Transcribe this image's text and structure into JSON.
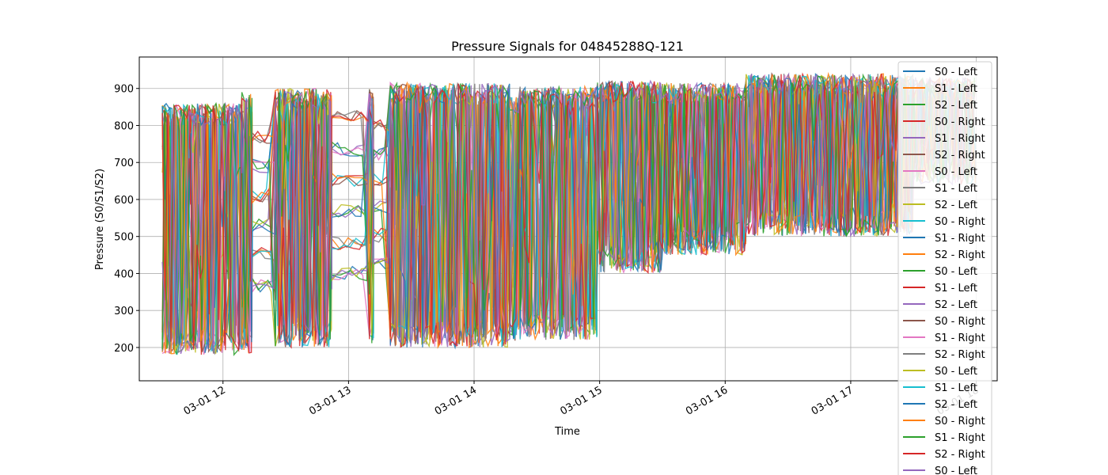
{
  "chart_data": {
    "type": "line",
    "title": "Pressure Signals for 04845288Q-121",
    "xlabel": "Time",
    "ylabel": "Pressure (S0/S1/S2)",
    "grid": true,
    "legend_position": "top-right",
    "x_ticks": [
      "03-01 12",
      "03-01 13",
      "03-01 14",
      "03-01 15",
      "03-01 16",
      "03-01 17",
      "03-01 18"
    ],
    "x_range": [
      "03-01 11:20",
      "03-01 18:10"
    ],
    "y_ticks": [
      200,
      300,
      400,
      500,
      600,
      700,
      800,
      900
    ],
    "ylim": [
      110,
      985
    ],
    "series": [
      {
        "name": "S0 - Left",
        "color": "#1f77b4"
      },
      {
        "name": "S1 - Left",
        "color": "#ff7f0e"
      },
      {
        "name": "S2 - Left",
        "color": "#2ca02c"
      },
      {
        "name": "S0 - Right",
        "color": "#d62728"
      },
      {
        "name": "S1 - Right",
        "color": "#9467bd"
      },
      {
        "name": "S2 - Right",
        "color": "#8c564b"
      },
      {
        "name": "S0 - Left",
        "color": "#e377c2"
      },
      {
        "name": "S1 - Left",
        "color": "#7f7f7f"
      },
      {
        "name": "S2 - Left",
        "color": "#bcbd22"
      },
      {
        "name": "S0 - Right",
        "color": "#17becf"
      },
      {
        "name": "S1 - Right",
        "color": "#1f77b4"
      },
      {
        "name": "S2 - Right",
        "color": "#ff7f0e"
      },
      {
        "name": "S0 - Left",
        "color": "#2ca02c"
      },
      {
        "name": "S1 - Left",
        "color": "#d62728"
      },
      {
        "name": "S2 - Left",
        "color": "#9467bd"
      },
      {
        "name": "S0 - Right",
        "color": "#8c564b"
      },
      {
        "name": "S1 - Right",
        "color": "#e377c2"
      },
      {
        "name": "S2 - Right",
        "color": "#7f7f7f"
      },
      {
        "name": "S0 - Left",
        "color": "#bcbd22"
      },
      {
        "name": "S1 - Left",
        "color": "#17becf"
      },
      {
        "name": "S2 - Left",
        "color": "#1f77b4"
      },
      {
        "name": "S0 - Right",
        "color": "#ff7f0e"
      },
      {
        "name": "S1 - Right",
        "color": "#2ca02c"
      },
      {
        "name": "S2 - Right",
        "color": "#d62728"
      },
      {
        "name": "S0 - Left",
        "color": "#9467bd"
      }
    ],
    "segments": [
      {
        "start": "11:31",
        "end": "12:09",
        "low": 180,
        "high": 860,
        "dense": true
      },
      {
        "start": "12:09",
        "end": "12:14",
        "low": 185,
        "high": 890,
        "dense": true
      },
      {
        "start": "12:14",
        "end": "12:25",
        "low": 370,
        "high": 850,
        "dense": false
      },
      {
        "start": "12:25",
        "end": "12:52",
        "low": 200,
        "high": 900,
        "dense": true
      },
      {
        "start": "12:52",
        "end": "13:10",
        "low": 400,
        "high": 905,
        "dense": false
      },
      {
        "start": "13:10",
        "end": "13:12",
        "low": 210,
        "high": 900,
        "dense": true
      },
      {
        "start": "13:12",
        "end": "13:20",
        "low": 430,
        "high": 870,
        "dense": false
      },
      {
        "start": "13:20",
        "end": "14:17",
        "low": 200,
        "high": 915,
        "dense": true
      },
      {
        "start": "14:17",
        "end": "14:22",
        "low": 215,
        "high": 880,
        "dense": true
      },
      {
        "start": "14:22",
        "end": "14:59",
        "low": 220,
        "high": 905,
        "dense": true
      },
      {
        "start": "14:59",
        "end": "15:30",
        "low": 400,
        "high": 920,
        "dense": true
      },
      {
        "start": "15:30",
        "end": "16:10",
        "low": 450,
        "high": 915,
        "dense": true
      },
      {
        "start": "16:10",
        "end": "17:30",
        "low": 500,
        "high": 940,
        "dense": true
      },
      {
        "start": "17:30",
        "end": "18:00",
        "low": 640,
        "high": 930,
        "dense": true
      }
    ]
  }
}
